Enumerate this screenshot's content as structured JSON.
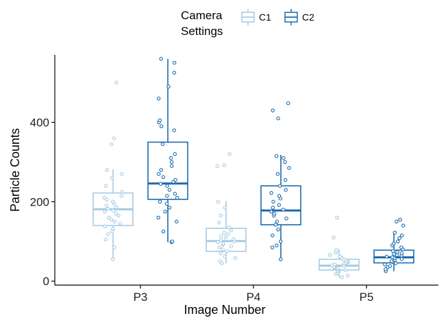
{
  "chart_data": {
    "type": "boxplot",
    "xlabel": "Image Number",
    "ylabel": "Particle Counts",
    "ylim": [
      -10,
      570
    ],
    "yticks": [
      0,
      200,
      400
    ],
    "categories": [
      "P3",
      "P4",
      "P5"
    ],
    "legend": {
      "title_lines": [
        "Camera",
        "Settings"
      ],
      "placement": "top-center"
    },
    "grid": false,
    "series": [
      {
        "name": "C1",
        "color": "#a6cbe3",
        "boxes": [
          {
            "category": "P3",
            "whisker_low": 55,
            "q1": 140,
            "median": 181,
            "q3": 222,
            "whisker_high": 282
          },
          {
            "category": "P4",
            "whisker_low": 45,
            "q1": 75,
            "median": 101,
            "q3": 133,
            "whisker_high": 202
          },
          {
            "category": "P5",
            "whisker_low": 10,
            "q1": 28,
            "median": 39,
            "q3": 55,
            "whisker_high": 80
          }
        ],
        "points": [
          {
            "category": "P3",
            "values": [
              55,
              85,
              105,
              118,
              125,
              132,
              138,
              145,
              150,
              155,
              160,
              165,
              170,
              175,
              178,
              182,
              186,
              190,
              195,
              200,
              205,
              210,
              215,
              225,
              240,
              260,
              270,
              280,
              345,
              360,
              500
            ]
          },
          {
            "category": "P4",
            "values": [
              45,
              50,
              58,
              62,
              70,
              75,
              80,
              85,
              88,
              92,
              95,
              98,
              100,
              103,
              106,
              110,
              114,
              118,
              122,
              128,
              135,
              148,
              165,
              185,
              200,
              290,
              292,
              320
            ]
          },
          {
            "category": "P5",
            "values": [
              10,
              14,
              18,
              20,
              24,
              26,
              28,
              30,
              32,
              34,
              36,
              38,
              40,
              42,
              44,
              46,
              48,
              50,
              52,
              55,
              58,
              62,
              66,
              72,
              78,
              110,
              160
            ]
          }
        ]
      },
      {
        "name": "C2",
        "color": "#1a6aaf",
        "boxes": [
          {
            "category": "P3",
            "whisker_low": 98,
            "q1": 206,
            "median": 246,
            "q3": 350,
            "whisker_high": 560
          },
          {
            "category": "P4",
            "whisker_low": 55,
            "q1": 142,
            "median": 178,
            "q3": 240,
            "whisker_high": 318
          },
          {
            "category": "P5",
            "whisker_low": 25,
            "q1": 46,
            "median": 60,
            "q3": 78,
            "whisker_high": 122
          }
        ],
        "points": [
          {
            "category": "P3",
            "values": [
              98,
              100,
              125,
              150,
              160,
              175,
              185,
              195,
              200,
              210,
              215,
              220,
              230,
              240,
              245,
              250,
              255,
              262,
              270,
              280,
              290,
              300,
              310,
              320,
              345,
              380,
              390,
              400,
              405,
              460,
              490,
              525,
              550,
              560
            ]
          },
          {
            "category": "P4",
            "values": [
              55,
              85,
              90,
              100,
              115,
              130,
              142,
              150,
              158,
              165,
              170,
              175,
              180,
              185,
              192,
              200,
              208,
              215,
              222,
              230,
              240,
              255,
              270,
              285,
              300,
              310,
              315,
              410,
              430,
              448
            ]
          },
          {
            "category": "P5",
            "values": [
              25,
              30,
              35,
              38,
              42,
              45,
              48,
              50,
              53,
              56,
              58,
              60,
              62,
              64,
              66,
              68,
              70,
              73,
              76,
              80,
              85,
              90,
              95,
              100,
              108,
              115,
              122,
              140,
              150,
              155
            ]
          }
        ]
      }
    ]
  }
}
